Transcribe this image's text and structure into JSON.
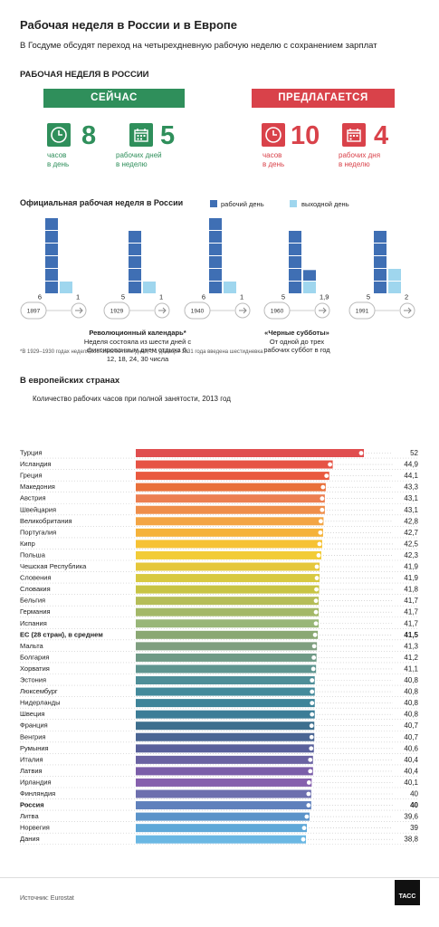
{
  "header": {
    "title": "Рабочая неделя в России и в Европе",
    "subtitle": "В Госдуме обсудят переход на четырехдневную рабочую неделю с сохранением зарплат"
  },
  "russia": {
    "section_title": "РАБОЧАЯ НЕДЕЛЯ В РОССИИ",
    "now": {
      "banner": "СЕЙЧАС",
      "color": "#2f8f5b",
      "hours_value": "8",
      "hours_label_1": "часов",
      "hours_label_2": "в день",
      "days_value": "5",
      "days_label_1": "рабочих дней",
      "days_label_2": "в неделю"
    },
    "proposed": {
      "banner": "ПРЕДЛАГАЕТСЯ",
      "color": "#d9424a",
      "hours_value": "10",
      "hours_label_1": "часов",
      "hours_label_2": "в день",
      "days_value": "4",
      "days_label_1": "рабочих дня",
      "days_label_2": "в неделю"
    }
  },
  "official": {
    "title": "Официальная рабочая неделя в России",
    "legend_work": "рабочий день",
    "legend_off": "выходной день",
    "work_color": "#3f6fb4",
    "off_color": "#9fd6ee",
    "footnote": "*В 1929–1930 годах неделя состояла из пяти дней, с 1 декабря 1931 года введена шестидневка"
  },
  "chart_data": [
    {
      "type": "bar",
      "title": "Официальная рабочая неделя в России",
      "categories": [
        "1897",
        "1929",
        "1940",
        "1960",
        "1991"
      ],
      "series": [
        {
          "name": "рабочий день",
          "values": [
            6,
            5,
            6,
            5,
            5
          ]
        },
        {
          "name": "выходной день",
          "values": [
            1,
            1,
            1,
            1.9,
            2
          ]
        }
      ],
      "value_labels_work": [
        "6",
        "5",
        "6",
        "5",
        "5"
      ],
      "value_labels_off": [
        "1",
        "1",
        "1",
        "1,9",
        "2"
      ],
      "annotations": [
        {
          "year": "1929",
          "bold": "Революционный календарь*",
          "text": "Неделя состояла из шести дней с фиксированным днем отдыха 6, 12, 18, 24, 30 числа"
        },
        {
          "year": "1960",
          "bold": "«Черные субботы»",
          "text": "От одной до трех рабочих суббот в год"
        }
      ]
    },
    {
      "type": "bar",
      "orientation": "horizontal",
      "title": "Количество рабочих часов при полной занятости, 2013 год",
      "xlim": [
        0,
        52
      ],
      "categories": [
        "Турция",
        "Исландия",
        "Греция",
        "Македония",
        "Австрия",
        "Швейцария",
        "Великобритания",
        "Португалия",
        "Кипр",
        "Польша",
        "Чешская Республика",
        "Словения",
        "Словакия",
        "Бельгия",
        "Германия",
        "Испания",
        "ЕС (28 стран), в среднем",
        "Мальта",
        "Болгария",
        "Хорватия",
        "Эстония",
        "Люксембург",
        "Нидерланды",
        "Швеция",
        "Франция",
        "Венгрия",
        "Румыния",
        "Италия",
        "Латвия",
        "Ирландия",
        "Финляндия",
        "Россия",
        "Литва",
        "Норвегия",
        "Дания"
      ],
      "values": [
        52,
        44.9,
        44.1,
        43.3,
        43.1,
        43.1,
        42.8,
        42.7,
        42.5,
        42.3,
        41.9,
        41.9,
        41.8,
        41.7,
        41.7,
        41.7,
        41.5,
        41.3,
        41.2,
        41.1,
        40.8,
        40.8,
        40.8,
        40.8,
        40.7,
        40.7,
        40.6,
        40.4,
        40.4,
        40.1,
        40,
        40,
        39.6,
        39,
        38.8
      ],
      "labels": [
        "52",
        "44,9",
        "44,1",
        "43,3",
        "43,1",
        "43,1",
        "42,8",
        "42,7",
        "42,5",
        "42,3",
        "41,9",
        "41,9",
        "41,8",
        "41,7",
        "41,7",
        "41,7",
        "41,5",
        "41,3",
        "41,2",
        "41,1",
        "40,8",
        "40,8",
        "40,8",
        "40,8",
        "40,7",
        "40,7",
        "40,6",
        "40,4",
        "40,4",
        "40,1",
        "40",
        "40",
        "39,6",
        "39",
        "38,8"
      ],
      "bold_categories": [
        "ЕС (28 стран), в среднем",
        "Россия"
      ],
      "colors": [
        "#e04e4f",
        "#e65345",
        "#e9593f",
        "#e9703a",
        "#ec7f52",
        "#ef8e4a",
        "#f3a544",
        "#f5b23a",
        "#f6c235",
        "#f2cc37",
        "#e5c73b",
        "#d8c941",
        "#c8c444",
        "#b5bd58",
        "#a3b868",
        "#98b678",
        "#8aa873",
        "#7f9f80",
        "#6f9a86",
        "#5f9590",
        "#4e8e98",
        "#448a9b",
        "#3e8499",
        "#3c7d97",
        "#3e6f8e",
        "#4b6694",
        "#59609b",
        "#6a62a2",
        "#7b5ea9",
        "#8660ad",
        "#6d6fae",
        "#5f80bc",
        "#5b93c9",
        "#5fa8d8",
        "#6ab7e3"
      ]
    }
  ],
  "europe": {
    "section_title": "В европейских странах",
    "subtitle": "Количество рабочих часов при полной занятости, 2013 год"
  },
  "footer": {
    "source": "Источник: Eurostat",
    "logo": "ТАСС"
  }
}
